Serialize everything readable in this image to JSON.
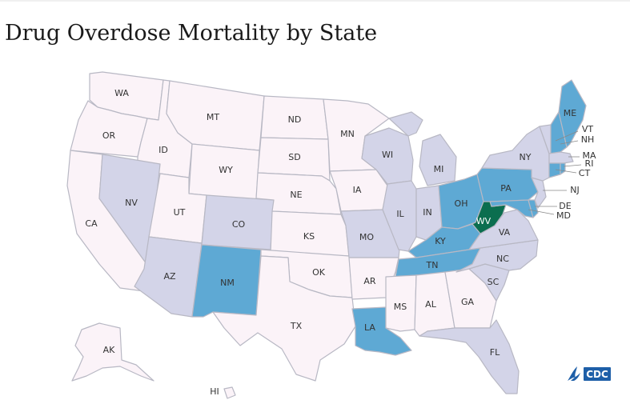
{
  "title": "Drug Overdose Mortality by State",
  "colors": {
    "lowest": "#fbf3f8",
    "low": "#d3d4e8",
    "high": "#5ea9d4",
    "highest": "#0b6e4f",
    "border": "#b8b8c4"
  },
  "states": {
    "WA": {
      "label": "WA",
      "level": "lowest"
    },
    "OR": {
      "label": "OR",
      "level": "lowest"
    },
    "CA": {
      "label": "CA",
      "level": "lowest"
    },
    "ID": {
      "label": "ID",
      "level": "lowest"
    },
    "NV": {
      "label": "NV",
      "level": "low"
    },
    "MT": {
      "label": "MT",
      "level": "lowest"
    },
    "WY": {
      "label": "WY",
      "level": "lowest"
    },
    "UT": {
      "label": "UT",
      "level": "lowest"
    },
    "AZ": {
      "label": "AZ",
      "level": "low"
    },
    "CO": {
      "label": "CO",
      "level": "low"
    },
    "NM": {
      "label": "NM",
      "level": "high"
    },
    "ND": {
      "label": "ND",
      "level": "lowest"
    },
    "SD": {
      "label": "SD",
      "level": "lowest"
    },
    "NE": {
      "label": "NE",
      "level": "lowest"
    },
    "KS": {
      "label": "KS",
      "level": "lowest"
    },
    "OK": {
      "label": "OK",
      "level": "lowest"
    },
    "TX": {
      "label": "TX",
      "level": "lowest"
    },
    "MN": {
      "label": "MN",
      "level": "lowest"
    },
    "IA": {
      "label": "IA",
      "level": "lowest"
    },
    "MO": {
      "label": "MO",
      "level": "low"
    },
    "AR": {
      "label": "AR",
      "level": "lowest"
    },
    "LA": {
      "label": "LA",
      "level": "high"
    },
    "WI": {
      "label": "WI",
      "level": "low"
    },
    "IL": {
      "label": "IL",
      "level": "low"
    },
    "MI": {
      "label": "MI",
      "level": "low"
    },
    "IN": {
      "label": "IN",
      "level": "low"
    },
    "OH": {
      "label": "OH",
      "level": "high"
    },
    "KY": {
      "label": "KY",
      "level": "high"
    },
    "TN": {
      "label": "TN",
      "level": "high"
    },
    "MS": {
      "label": "MS",
      "level": "lowest"
    },
    "AL": {
      "label": "AL",
      "level": "lowest"
    },
    "GA": {
      "label": "GA",
      "level": "lowest"
    },
    "FL": {
      "label": "FL",
      "level": "low"
    },
    "SC": {
      "label": "SC",
      "level": "low"
    },
    "NC": {
      "label": "NC",
      "level": "low"
    },
    "VA": {
      "label": "VA",
      "level": "low"
    },
    "WV": {
      "label": "WV",
      "level": "highest"
    },
    "PA": {
      "label": "PA",
      "level": "high"
    },
    "NY": {
      "label": "NY",
      "level": "low"
    },
    "ME": {
      "label": "ME",
      "level": "high"
    },
    "VT": {
      "label": "VT",
      "level": "low"
    },
    "NH": {
      "label": "NH",
      "level": "high"
    },
    "MA": {
      "label": "MA",
      "level": "low"
    },
    "RI": {
      "label": "RI",
      "level": "high"
    },
    "CT": {
      "label": "CT",
      "level": "high"
    },
    "NJ": {
      "label": "NJ",
      "level": "low"
    },
    "DE": {
      "label": "DE",
      "level": "high"
    },
    "MD": {
      "label": "MD",
      "level": "high"
    },
    "AK": {
      "label": "AK",
      "level": "lowest"
    },
    "HI": {
      "label": "HI",
      "level": "lowest"
    }
  },
  "logo": {
    "text": "CDC",
    "icon": "hhs-eagle-icon"
  }
}
